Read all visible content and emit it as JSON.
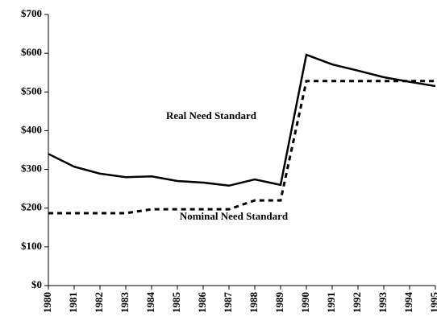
{
  "chart_data": {
    "type": "line",
    "x": [
      1980,
      1981,
      1982,
      1983,
      1984,
      1985,
      1986,
      1987,
      1988,
      1989,
      1990,
      1991,
      1992,
      1993,
      1994,
      1995
    ],
    "xlim": [
      1980,
      1995
    ],
    "series": [
      {
        "name": "Real Need Standard",
        "color": "#000000",
        "dash": false,
        "values": [
          340,
          307,
          289,
          280,
          282,
          270,
          266,
          258,
          274,
          260,
          596,
          571,
          555,
          538,
          526,
          515
        ]
      },
      {
        "name": "Nominal Need Standard",
        "color": "#000000",
        "dash": true,
        "values": [
          187,
          187,
          187,
          187,
          197,
          197,
          197,
          197,
          220,
          220,
          528,
          528,
          528,
          528,
          528,
          528
        ]
      }
    ],
    "ylim": [
      0,
      700
    ],
    "yticks": [
      {
        "value": 0,
        "label": "$0"
      },
      {
        "value": 100,
        "label": "$100"
      },
      {
        "value": 200,
        "label": "$200"
      },
      {
        "value": 300,
        "label": "$300"
      },
      {
        "value": 400,
        "label": "$400"
      },
      {
        "value": 500,
        "label": "$500"
      },
      {
        "value": 600,
        "label": "$600"
      },
      {
        "value": 700,
        "label": "$700"
      }
    ],
    "grid": false
  }
}
